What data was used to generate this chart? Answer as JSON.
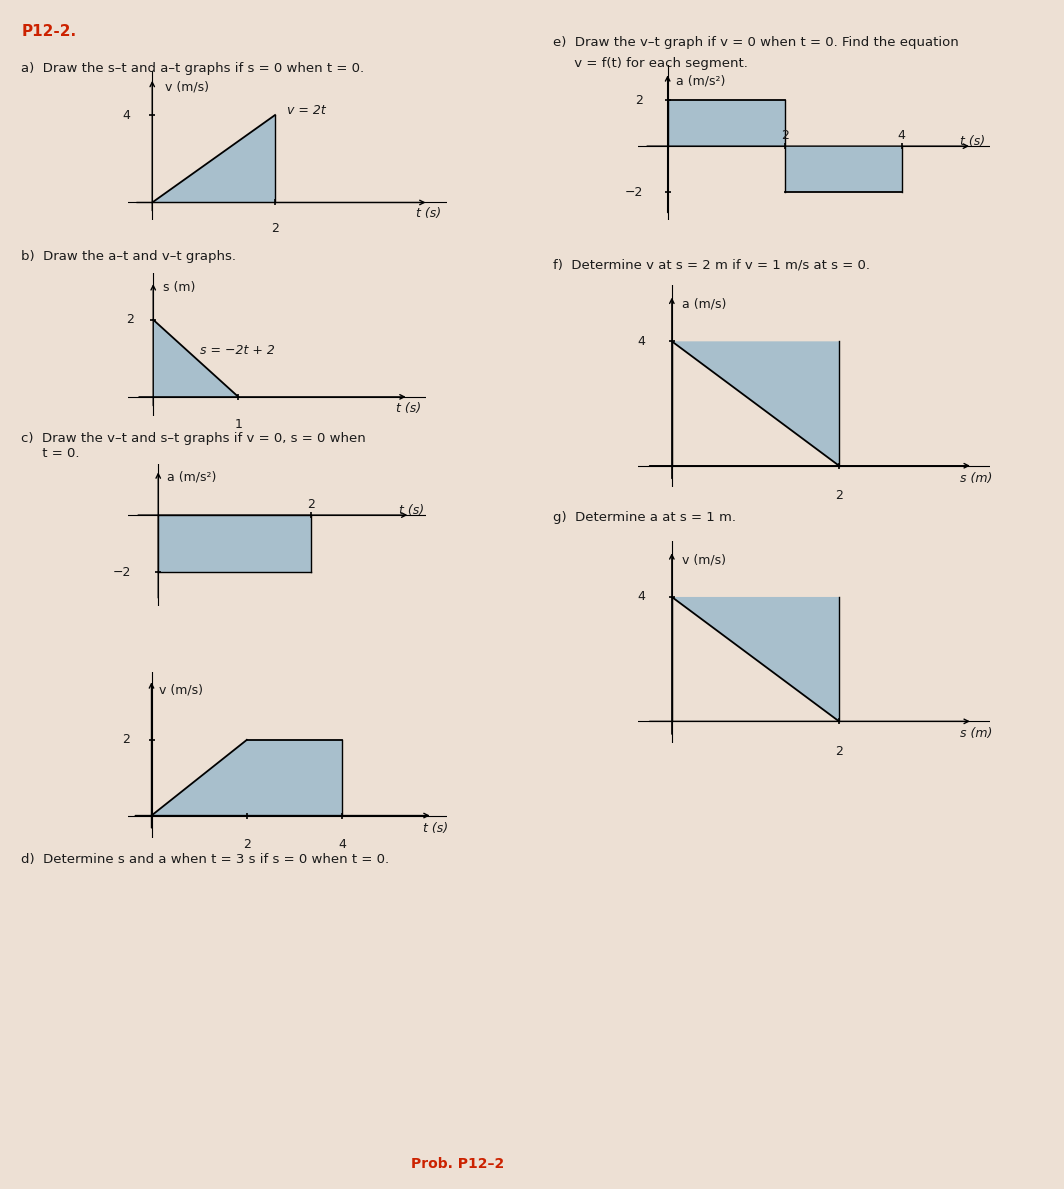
{
  "bg_color": "#ede0d4",
  "fill_color": "#a8bfcc",
  "title_color": "#cc2200",
  "text_color": "#1a1a1a",
  "title": "P12-2.",
  "label_a": "a)  Draw the s–t and a–t graphs if s = 0 when t = 0.",
  "label_b": "b)  Draw the a–t and v–t graphs.",
  "label_c": "c)  Draw the v–t and s–t graphs if v = 0, s = 0 when\n     t = 0.",
  "label_d": "d)  Determine s and a when t = 3 s if s = 0 when t = 0.",
  "label_e_line1": "e)  Draw the v–t graph if v = 0 when t = 0. Find the equation",
  "label_e_line2": "     v = f(t) for each segment.",
  "label_f": "f)  Determine v at s = 2 m if v = 1 m/s at s = 0.",
  "label_g": "g)  Determine a at s = 1 m.",
  "prob_label": "Prob. P12–2"
}
